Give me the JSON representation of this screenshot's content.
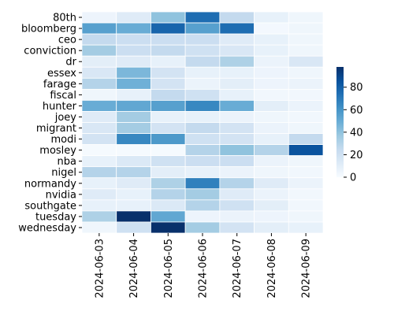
{
  "chart_data": {
    "type": "heatmap",
    "title": "",
    "xlabel": "",
    "ylabel": "",
    "x": [
      "2024-06-03",
      "2024-06-04",
      "2024-06-05",
      "2024-06-06",
      "2024-06-07",
      "2024-06-08",
      "2024-06-09"
    ],
    "y": [
      "80th",
      "bloomberg",
      "ceo",
      "conviction",
      "dr",
      "essex",
      "farage",
      "fiscal",
      "hunter",
      "joey",
      "migrant",
      "modi",
      "mosley",
      "nba",
      "nigel",
      "normandy",
      "nvidia",
      "southgate",
      "tuesday",
      "wednesday"
    ],
    "values": [
      [
        5,
        12,
        40,
        75,
        25,
        8,
        4
      ],
      [
        55,
        50,
        78,
        55,
        75,
        2,
        4
      ],
      [
        25,
        22,
        22,
        22,
        12,
        8,
        4
      ],
      [
        35,
        22,
        25,
        20,
        15,
        8,
        4
      ],
      [
        10,
        12,
        8,
        25,
        32,
        6,
        15
      ],
      [
        15,
        45,
        18,
        8,
        8,
        5,
        4
      ],
      [
        30,
        48,
        18,
        6,
        10,
        5,
        6
      ],
      [
        4,
        8,
        25,
        20,
        8,
        3,
        3
      ],
      [
        50,
        52,
        55,
        65,
        50,
        10,
        6
      ],
      [
        12,
        35,
        8,
        8,
        6,
        4,
        3
      ],
      [
        15,
        35,
        18,
        25,
        18,
        6,
        4
      ],
      [
        18,
        65,
        58,
        20,
        18,
        8,
        25
      ],
      [
        1,
        1,
        1,
        30,
        40,
        30,
        85
      ],
      [
        8,
        14,
        20,
        22,
        22,
        6,
        4
      ],
      [
        30,
        30,
        10,
        8,
        6,
        4,
        3
      ],
      [
        8,
        12,
        32,
        68,
        30,
        12,
        6
      ],
      [
        12,
        8,
        30,
        35,
        12,
        6,
        3
      ],
      [
        8,
        8,
        14,
        30,
        20,
        10,
        3
      ],
      [
        32,
        98,
        52,
        5,
        6,
        5,
        4
      ],
      [
        4,
        20,
        100,
        35,
        18,
        10,
        8
      ]
    ],
    "zlim": [
      0,
      98
    ],
    "colorbar_ticks": [
      0,
      20,
      40,
      60,
      80
    ],
    "colormap": [
      "#f7fbff",
      "#deebf7",
      "#c6dbef",
      "#9ecae1",
      "#6baed6",
      "#4292c6",
      "#2171b5",
      "#08519c",
      "#08306b"
    ],
    "grid": true
  }
}
